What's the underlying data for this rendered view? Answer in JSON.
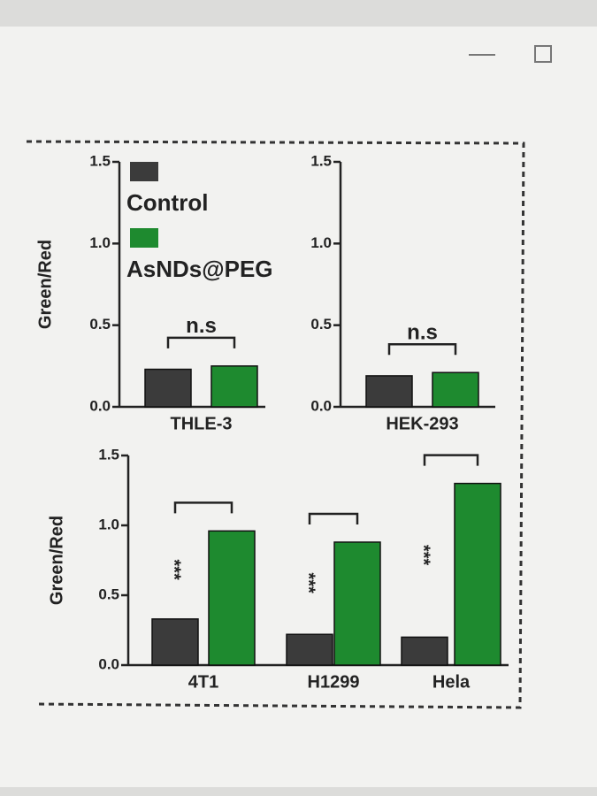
{
  "chart_data": [
    {
      "type": "bar",
      "ylabel": "Green/Red",
      "categories": [
        "THLE-3"
      ],
      "series": [
        {
          "name": "Control",
          "color": "#3b3b3b",
          "values": [
            0.23
          ]
        },
        {
          "name": "AsNDs@PEG",
          "color": "#1e8a2f",
          "values": [
            0.25
          ]
        }
      ],
      "annotations": [
        "n.s"
      ],
      "ylim": [
        0,
        1.5
      ],
      "yticks": [
        {
          "value": 0,
          "label": "0.0"
        },
        0.5,
        {
          "value": 1,
          "label": "1.0"
        },
        1.5
      ]
    },
    {
      "type": "bar",
      "categories": [
        "HEK-293"
      ],
      "series": [
        {
          "color": "#3b3b3b",
          "values": [
            0.19
          ]
        },
        {
          "color": "#1e8a2f",
          "values": [
            0.21
          ]
        }
      ],
      "annotations": [
        "n.s"
      ],
      "ylim": [
        0,
        1.5
      ],
      "yticks": [
        {
          "value": 0,
          "label": "0.0"
        },
        0.5,
        {
          "value": 1,
          "label": "1.0"
        },
        1.5
      ]
    },
    {
      "type": "bar",
      "ylabel": "Green/Red",
      "categories": [
        "4T1",
        "H1299",
        "Hela"
      ],
      "series": [
        {
          "color": "#3b3b3b",
          "values": [
            0.33,
            0.22,
            0.2
          ]
        },
        {
          "color": "#1e8a2f",
          "values": [
            0.96,
            0.88,
            1.3
          ]
        }
      ],
      "annotations": [
        "***",
        "***",
        "***"
      ],
      "ylim": [
        0,
        1.5
      ],
      "yticks": [
        {
          "value": 0,
          "label": "0.0"
        },
        0.5,
        {
          "value": 1,
          "label": "1.0"
        },
        1.5
      ]
    }
  ]
}
